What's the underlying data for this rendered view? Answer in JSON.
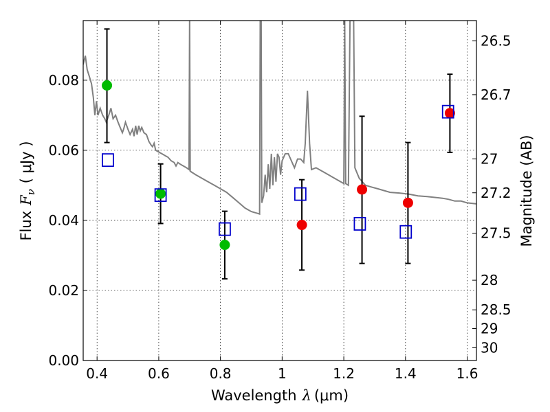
{
  "chart_data": {
    "type": "scatter",
    "xlabel": "Wavelength",
    "xlabel_symbol": "λ",
    "xlabel_unit": "(μm)",
    "ylabel": "Flux",
    "ylabel_symbol": "F",
    "ylabel_subscript": "ν",
    "ylabel_unit": "( μJy )",
    "y2label": "Magnitude (AB)",
    "xlim": [
      0.355,
      1.63
    ],
    "ylim": [
      0.0,
      0.097
    ],
    "grid": true,
    "x_ticks": [
      {
        "value": 0.4,
        "label": "0.4"
      },
      {
        "value": 0.6,
        "label": "0.6"
      },
      {
        "value": 0.8,
        "label": "0.8"
      },
      {
        "value": 1.0,
        "label": "1"
      },
      {
        "value": 1.2,
        "label": "1.2"
      },
      {
        "value": 1.4,
        "label": "1.4"
      },
      {
        "value": 1.6,
        "label": "1.6"
      }
    ],
    "y_ticks": [
      {
        "value": 0.0,
        "label": "0.00"
      },
      {
        "value": 0.02,
        "label": "0.02"
      },
      {
        "value": 0.04,
        "label": "0.04"
      },
      {
        "value": 0.06,
        "label": "0.06"
      },
      {
        "value": 0.08,
        "label": "0.08"
      }
    ],
    "y2_ticks": [
      {
        "value": 26.5,
        "label": "26.5"
      },
      {
        "value": 26.7,
        "label": "26.7"
      },
      {
        "value": 27.0,
        "label": "27"
      },
      {
        "value": 27.2,
        "label": "27.2"
      },
      {
        "value": 27.5,
        "label": "27.5"
      },
      {
        "value": 28.0,
        "label": "28"
      },
      {
        "value": 28.5,
        "label": "28.5"
      },
      {
        "value": 29.0,
        "label": "29"
      },
      {
        "value": 30.0,
        "label": "30"
      }
    ],
    "colors": {
      "model": "#808080",
      "green": "#00bb00",
      "red": "#ee0000",
      "square": "#0000cc",
      "errorbar": "#000000"
    },
    "error_points": [
      {
        "x": 0.432,
        "y": 0.0785,
        "ylo": 0.0622,
        "yhi": 0.0946,
        "color": "green"
      },
      {
        "x": 0.606,
        "y": 0.0476,
        "ylo": 0.0391,
        "yhi": 0.0561,
        "color": "green"
      },
      {
        "x": 0.814,
        "y": 0.033,
        "ylo": 0.0233,
        "yhi": 0.0426,
        "color": "green"
      },
      {
        "x": 1.064,
        "y": 0.0387,
        "ylo": 0.0258,
        "yhi": 0.0516,
        "color": "red"
      },
      {
        "x": 1.259,
        "y": 0.0488,
        "ylo": 0.0277,
        "yhi": 0.0697,
        "color": "red"
      },
      {
        "x": 1.408,
        "y": 0.045,
        "ylo": 0.0277,
        "yhi": 0.0622,
        "color": "red"
      },
      {
        "x": 1.544,
        "y": 0.0706,
        "ylo": 0.0594,
        "yhi": 0.0817,
        "color": "red"
      }
    ],
    "model_photometry": [
      {
        "x": 0.435,
        "y": 0.0572
      },
      {
        "x": 0.606,
        "y": 0.0472
      },
      {
        "x": 0.814,
        "y": 0.0375
      },
      {
        "x": 1.059,
        "y": 0.0475
      },
      {
        "x": 1.252,
        "y": 0.039
      },
      {
        "x": 1.401,
        "y": 0.0367
      },
      {
        "x": 1.538,
        "y": 0.071
      }
    ],
    "model_spectrum": [
      [
        0.355,
        0.0845
      ],
      [
        0.362,
        0.087
      ],
      [
        0.368,
        0.083
      ],
      [
        0.375,
        0.081
      ],
      [
        0.382,
        0.079
      ],
      [
        0.388,
        0.075
      ],
      [
        0.393,
        0.07
      ],
      [
        0.398,
        0.074
      ],
      [
        0.403,
        0.07
      ],
      [
        0.41,
        0.072
      ],
      [
        0.418,
        0.07
      ],
      [
        0.425,
        0.069
      ],
      [
        0.43,
        0.068
      ],
      [
        0.438,
        0.07
      ],
      [
        0.445,
        0.072
      ],
      [
        0.452,
        0.069
      ],
      [
        0.46,
        0.07
      ],
      [
        0.468,
        0.068
      ],
      [
        0.475,
        0.0665
      ],
      [
        0.482,
        0.065
      ],
      [
        0.486,
        0.066
      ],
      [
        0.492,
        0.068
      ],
      [
        0.5,
        0.066
      ],
      [
        0.507,
        0.0645
      ],
      [
        0.515,
        0.066
      ],
      [
        0.52,
        0.064
      ],
      [
        0.525,
        0.067
      ],
      [
        0.53,
        0.0645
      ],
      [
        0.535,
        0.067
      ],
      [
        0.54,
        0.0655
      ],
      [
        0.545,
        0.0665
      ],
      [
        0.552,
        0.065
      ],
      [
        0.56,
        0.0645
      ],
      [
        0.568,
        0.0625
      ],
      [
        0.575,
        0.0615
      ],
      [
        0.58,
        0.061
      ],
      [
        0.585,
        0.062
      ],
      [
        0.59,
        0.06
      ],
      [
        0.6,
        0.0595
      ],
      [
        0.61,
        0.059
      ],
      [
        0.62,
        0.0585
      ],
      [
        0.63,
        0.058
      ],
      [
        0.64,
        0.057
      ],
      [
        0.65,
        0.0565
      ],
      [
        0.656,
        0.0555
      ],
      [
        0.662,
        0.0565
      ],
      [
        0.67,
        0.056
      ],
      [
        0.68,
        0.0555
      ],
      [
        0.69,
        0.055
      ],
      [
        0.698,
        0.0545
      ],
      [
        0.7,
        0.097
      ],
      [
        0.702,
        0.054
      ],
      [
        0.72,
        0.053
      ],
      [
        0.74,
        0.052
      ],
      [
        0.76,
        0.051
      ],
      [
        0.78,
        0.05
      ],
      [
        0.8,
        0.049
      ],
      [
        0.82,
        0.048
      ],
      [
        0.84,
        0.0465
      ],
      [
        0.86,
        0.045
      ],
      [
        0.88,
        0.0435
      ],
      [
        0.9,
        0.0425
      ],
      [
        0.92,
        0.042
      ],
      [
        0.927,
        0.0418
      ],
      [
        0.929,
        0.097
      ],
      [
        0.932,
        0.097
      ],
      [
        0.934,
        0.045
      ],
      [
        0.94,
        0.047
      ],
      [
        0.945,
        0.053
      ],
      [
        0.95,
        0.048
      ],
      [
        0.955,
        0.056
      ],
      [
        0.96,
        0.049
      ],
      [
        0.965,
        0.059
      ],
      [
        0.97,
        0.05
      ],
      [
        0.975,
        0.058
      ],
      [
        0.98,
        0.051
      ],
      [
        0.985,
        0.059
      ],
      [
        0.99,
        0.058
      ],
      [
        0.995,
        0.053
      ],
      [
        1.0,
        0.057
      ],
      [
        1.01,
        0.059
      ],
      [
        1.02,
        0.059
      ],
      [
        1.03,
        0.057
      ],
      [
        1.04,
        0.055
      ],
      [
        1.05,
        0.0575
      ],
      [
        1.06,
        0.0575
      ],
      [
        1.07,
        0.0565
      ],
      [
        1.075,
        0.062
      ],
      [
        1.082,
        0.077
      ],
      [
        1.089,
        0.062
      ],
      [
        1.095,
        0.0545
      ],
      [
        1.11,
        0.055
      ],
      [
        1.13,
        0.054
      ],
      [
        1.15,
        0.053
      ],
      [
        1.17,
        0.052
      ],
      [
        1.19,
        0.051
      ],
      [
        1.2,
        0.0505
      ],
      [
        1.203,
        0.097
      ],
      [
        1.206,
        0.0505
      ],
      [
        1.215,
        0.05
      ],
      [
        1.22,
        0.097
      ],
      [
        1.232,
        0.097
      ],
      [
        1.236,
        0.055
      ],
      [
        1.25,
        0.052
      ],
      [
        1.27,
        0.05
      ],
      [
        1.29,
        0.0495
      ],
      [
        1.31,
        0.049
      ],
      [
        1.33,
        0.0485
      ],
      [
        1.35,
        0.048
      ],
      [
        1.38,
        0.0478
      ],
      [
        1.41,
        0.0475
      ],
      [
        1.44,
        0.047
      ],
      [
        1.47,
        0.0468
      ],
      [
        1.5,
        0.0465
      ],
      [
        1.52,
        0.0463
      ],
      [
        1.54,
        0.046
      ],
      [
        1.56,
        0.0455
      ],
      [
        1.58,
        0.0455
      ],
      [
        1.6,
        0.045
      ],
      [
        1.63,
        0.0447
      ]
    ]
  }
}
